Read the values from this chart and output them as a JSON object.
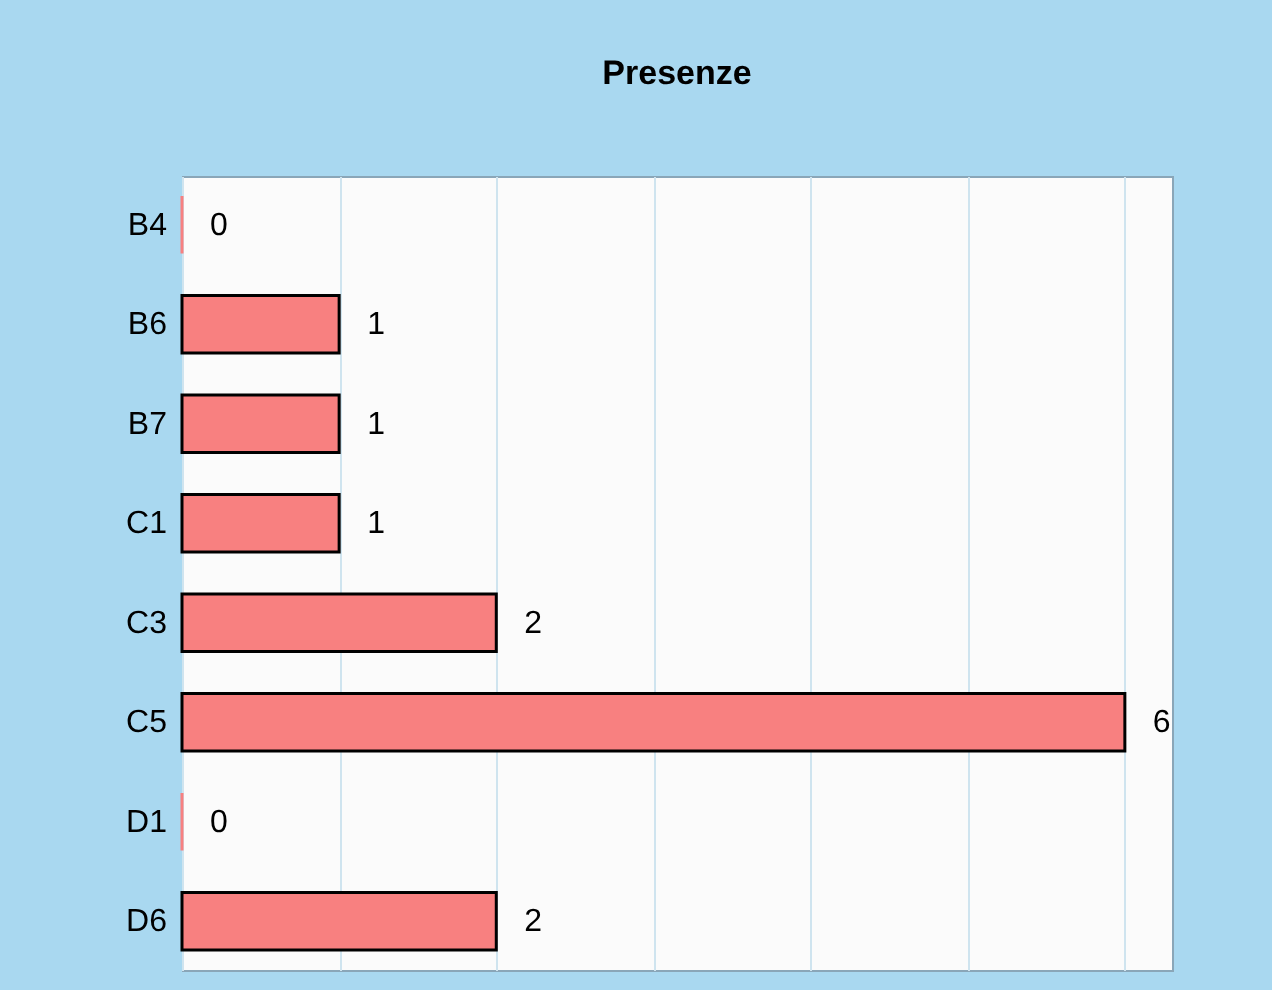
{
  "chart_data": {
    "type": "bar",
    "orientation": "horizontal",
    "title": "Presenze",
    "categories": [
      "B4",
      "B6",
      "B7",
      "C1",
      "C3",
      "C5",
      "D1",
      "D6"
    ],
    "values": [
      0,
      1,
      1,
      1,
      2,
      6,
      0,
      2
    ],
    "color": "#f88080",
    "xlim": [
      0,
      6.3
    ],
    "xticks": [
      {
        "value": 0,
        "label": null
      },
      {
        "value": 1,
        "label": null
      },
      {
        "value": 2,
        "label": null
      },
      {
        "value": 3,
        "label": null
      },
      {
        "value": 4,
        "label": null
      },
      {
        "value": 5,
        "label": null
      },
      {
        "value": 6,
        "label": null
      }
    ],
    "grid": "x",
    "tick_labels": "y",
    "data_labels": true
  }
}
